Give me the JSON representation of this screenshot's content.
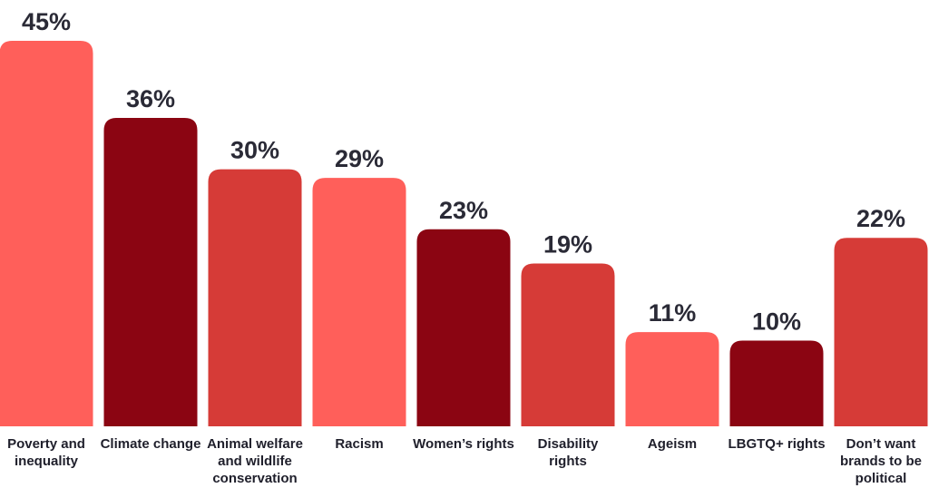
{
  "chart_data": {
    "type": "bar",
    "categories": [
      "Poverty and inequality",
      "Climate change",
      "Animal welfare and wildlife conservation",
      "Racism",
      "Women’s rights",
      "Disability rights",
      "Ageism",
      "LBGTQ+ rights",
      "Don’t want brands to be political"
    ],
    "values": [
      45,
      36,
      30,
      29,
      23,
      19,
      11,
      10,
      22
    ],
    "value_labels": [
      "45%",
      "36%",
      "30%",
      "29%",
      "23%",
      "19%",
      "11%",
      "10%",
      "22%"
    ],
    "colors": [
      "#ff5f5a",
      "#8b0512",
      "#d63b37",
      "#ff5f5a",
      "#8b0512",
      "#d63b37",
      "#ff5f5a",
      "#8b0512",
      "#d63b37"
    ]
  }
}
